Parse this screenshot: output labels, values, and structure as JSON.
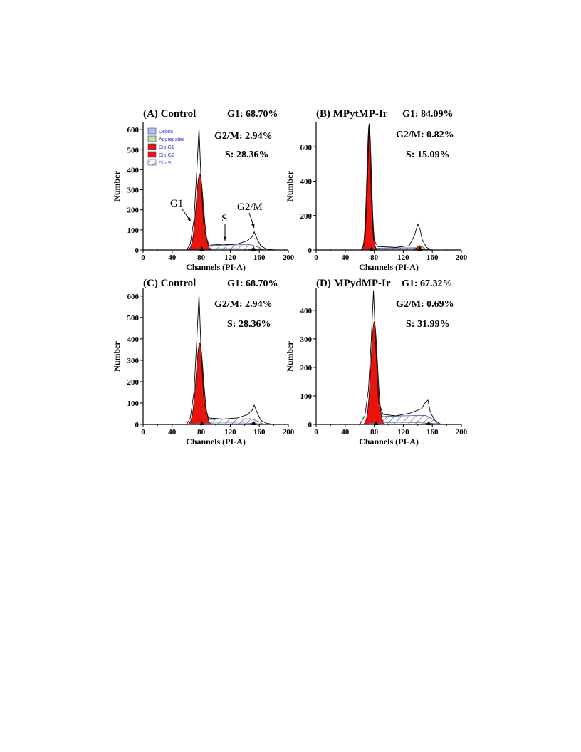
{
  "chart_data": [
    {
      "type": "area",
      "panel_title": "(A) Control",
      "stats": [
        "G1: 68.70%",
        "G2/M: 2.94%",
        "S: 28.36%"
      ],
      "xlabel": "Channels (PI-A)",
      "ylabel": "Number",
      "xlim": [
        0,
        200
      ],
      "ylim": [
        0,
        600
      ],
      "xticks": [
        0,
        40,
        80,
        120,
        160,
        200
      ],
      "yticks": [
        0,
        100,
        200,
        300,
        400,
        500,
        600
      ],
      "legend": {
        "placement": "top-left",
        "entries": [
          "Debris",
          "Aggregates",
          "Dip G1",
          "Dip G2",
          "Dip S"
        ]
      },
      "annotations": [
        "G1",
        "S",
        "G2/M"
      ],
      "g1": {
        "peak": 78,
        "height": 380,
        "sigma": 5.0
      },
      "g2": {
        "peak": 152,
        "height": 8
      },
      "s_level": 25,
      "histogram": [
        [
          60,
          0
        ],
        [
          65,
          30
        ],
        [
          70,
          150
        ],
        [
          74,
          400
        ],
        [
          77,
          610
        ],
        [
          80,
          330
        ],
        [
          84,
          100
        ],
        [
          90,
          30
        ],
        [
          110,
          25
        ],
        [
          130,
          30
        ],
        [
          143,
          45
        ],
        [
          150,
          65
        ],
        [
          153,
          90
        ],
        [
          157,
          55
        ],
        [
          162,
          20
        ],
        [
          170,
          5
        ],
        [
          180,
          0
        ]
      ]
    },
    {
      "type": "area",
      "panel_title": "(B) MPytMP-Ir",
      "stats": [
        "G1: 84.09%",
        "G2/M: 0.82%",
        "S: 15.09%"
      ],
      "xlabel": "Channels (PI-A)",
      "ylabel": "Number",
      "xlim": [
        0,
        200
      ],
      "ylim": [
        0,
        700
      ],
      "xticks": [
        0,
        40,
        80,
        120,
        160,
        200
      ],
      "yticks": [
        0,
        200,
        400,
        600
      ],
      "g1": {
        "peak": 73,
        "height": 730,
        "sigma": 3.2
      },
      "g2": {
        "peak": 143,
        "height": 25
      },
      "s_level": 12,
      "histogram": [
        [
          62,
          0
        ],
        [
          67,
          40
        ],
        [
          70,
          300
        ],
        [
          73,
          735
        ],
        [
          76,
          300
        ],
        [
          79,
          60
        ],
        [
          85,
          20
        ],
        [
          110,
          15
        ],
        [
          128,
          25
        ],
        [
          135,
          80
        ],
        [
          140,
          150
        ],
        [
          143,
          120
        ],
        [
          146,
          60
        ],
        [
          152,
          15
        ],
        [
          160,
          0
        ]
      ]
    },
    {
      "type": "area",
      "panel_title": "(C) Control",
      "stats": [
        "G1: 68.70%",
        "G2/M: 2.94%",
        "S: 28.36%"
      ],
      "xlabel": "Channels (PI-A)",
      "ylabel": "Number",
      "xlim": [
        0,
        200
      ],
      "ylim": [
        0,
        600
      ],
      "xticks": [
        0,
        40,
        80,
        120,
        160,
        200
      ],
      "yticks": [
        0,
        100,
        200,
        300,
        400,
        500,
        600
      ],
      "g1": {
        "peak": 78,
        "height": 380,
        "sigma": 5.0
      },
      "g2": {
        "peak": 152,
        "height": 8
      },
      "s_level": 25,
      "histogram": [
        [
          60,
          0
        ],
        [
          65,
          30
        ],
        [
          70,
          150
        ],
        [
          74,
          400
        ],
        [
          77,
          610
        ],
        [
          80,
          330
        ],
        [
          84,
          100
        ],
        [
          90,
          30
        ],
        [
          110,
          25
        ],
        [
          130,
          30
        ],
        [
          143,
          45
        ],
        [
          150,
          65
        ],
        [
          153,
          90
        ],
        [
          157,
          55
        ],
        [
          162,
          20
        ],
        [
          170,
          5
        ],
        [
          180,
          0
        ]
      ]
    },
    {
      "type": "area",
      "panel_title": "(D) MPydMP-Ir",
      "stats": [
        "G1: 67.32%",
        "G2/M: 0.69%",
        "S: 31.99%"
      ],
      "xlabel": "Channels (PI-A)",
      "ylabel": "Number",
      "xlim": [
        0,
        200
      ],
      "ylim": [
        0,
        450
      ],
      "xticks": [
        0,
        40,
        80,
        120,
        160,
        200
      ],
      "yticks": [
        0,
        100,
        200,
        300,
        400
      ],
      "g1": {
        "peak": 80,
        "height": 360,
        "sigma": 4.5
      },
      "g2": {
        "peak": 155,
        "height": 5
      },
      "s_level": 30,
      "histogram": [
        [
          60,
          0
        ],
        [
          67,
          30
        ],
        [
          72,
          120
        ],
        [
          76,
          300
        ],
        [
          79,
          470
        ],
        [
          82,
          280
        ],
        [
          86,
          80
        ],
        [
          92,
          35
        ],
        [
          110,
          30
        ],
        [
          130,
          40
        ],
        [
          145,
          55
        ],
        [
          150,
          75
        ],
        [
          154,
          85
        ],
        [
          157,
          45
        ],
        [
          163,
          15
        ],
        [
          172,
          0
        ]
      ]
    }
  ]
}
